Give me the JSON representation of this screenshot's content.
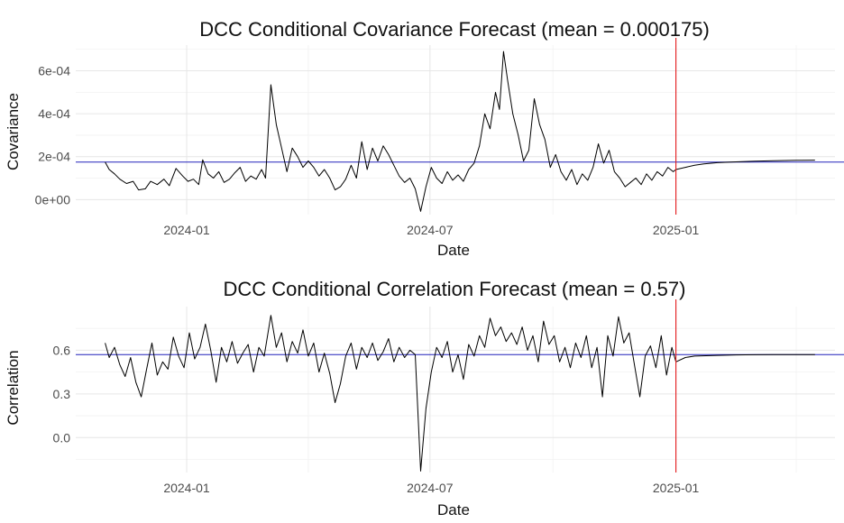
{
  "chart_data": [
    {
      "type": "line",
      "title": "DCC Conditional Covariance Forecast (mean = 0.000175)",
      "xlabel": "Date",
      "ylabel": "Covariance",
      "x_ticks": [
        "2024-01",
        "2024-07",
        "2025-01"
      ],
      "y_ticks": [
        "0e+00",
        "2e-04",
        "4e-04",
        "6e-04"
      ],
      "y_tick_values": [
        0,
        0.0002,
        0.0004,
        0.0006
      ],
      "xlim": [
        "2023-10-10",
        "2025-04-30"
      ],
      "ylim": [
        -7e-05,
        0.00072
      ],
      "grid": true,
      "mean_line": {
        "value": 0.000175,
        "color": "#2222bb"
      },
      "forecast_start": {
        "date": "2025-01-01",
        "color": "#e41a1c"
      },
      "series": [
        {
          "color": "#000000",
          "points": [
            [
              "2023-11-01",
              0.000175
            ],
            [
              "2023-11-04",
              0.00014
            ],
            [
              "2023-11-08",
              0.00012
            ],
            [
              "2023-11-12",
              9.5e-05
            ],
            [
              "2023-11-17",
              7.5e-05
            ],
            [
              "2023-11-22",
              8.5e-05
            ],
            [
              "2023-11-26",
              4.5e-05
            ],
            [
              "2023-12-01",
              5e-05
            ],
            [
              "2023-12-05",
              8.5e-05
            ],
            [
              "2023-12-10",
              7e-05
            ],
            [
              "2023-12-15",
              9.5e-05
            ],
            [
              "2023-12-19",
              6.5e-05
            ],
            [
              "2023-12-24",
              0.000145
            ],
            [
              "2023-12-29",
              0.00011
            ],
            [
              "2024-01-02",
              8.5e-05
            ],
            [
              "2024-01-06",
              9.5e-05
            ],
            [
              "2024-01-10",
              7e-05
            ],
            [
              "2024-01-13",
              0.000185
            ],
            [
              "2024-01-17",
              0.00012
            ],
            [
              "2024-01-21",
              0.0001
            ],
            [
              "2024-01-25",
              0.00013
            ],
            [
              "2024-01-29",
              8e-05
            ],
            [
              "2024-02-02",
              9.5e-05
            ],
            [
              "2024-02-06",
              0.000125
            ],
            [
              "2024-02-10",
              0.00015
            ],
            [
              "2024-02-14",
              8.5e-05
            ],
            [
              "2024-02-18",
              0.00011
            ],
            [
              "2024-02-22",
              9.5e-05
            ],
            [
              "2024-02-26",
              0.00014
            ],
            [
              "2024-02-29",
              0.0001
            ],
            [
              "2024-03-04",
              0.000535
            ],
            [
              "2024-03-08",
              0.00035
            ],
            [
              "2024-03-12",
              0.00024
            ],
            [
              "2024-03-16",
              0.00013
            ],
            [
              "2024-03-20",
              0.00024
            ],
            [
              "2024-03-24",
              0.0002
            ],
            [
              "2024-03-28",
              0.00015
            ],
            [
              "2024-04-01",
              0.00018
            ],
            [
              "2024-04-05",
              0.00015
            ],
            [
              "2024-04-09",
              0.00011
            ],
            [
              "2024-04-13",
              0.00014
            ],
            [
              "2024-04-17",
              0.0001
            ],
            [
              "2024-04-21",
              4.5e-05
            ],
            [
              "2024-04-25",
              6e-05
            ],
            [
              "2024-04-29",
              9.5e-05
            ],
            [
              "2024-05-03",
              0.00016
            ],
            [
              "2024-05-07",
              0.0001
            ],
            [
              "2024-05-11",
              0.00027
            ],
            [
              "2024-05-15",
              0.00014
            ],
            [
              "2024-05-19",
              0.00024
            ],
            [
              "2024-05-23",
              0.00018
            ],
            [
              "2024-05-27",
              0.00025
            ],
            [
              "2024-05-31",
              0.00021
            ],
            [
              "2024-06-04",
              0.00016
            ],
            [
              "2024-06-08",
              0.00011
            ],
            [
              "2024-06-12",
              8e-05
            ],
            [
              "2024-06-16",
              0.0001
            ],
            [
              "2024-06-20",
              5e-05
            ],
            [
              "2024-06-24",
              -5.5e-05
            ],
            [
              "2024-06-28",
              6e-05
            ],
            [
              "2024-07-02",
              0.00015
            ],
            [
              "2024-07-06",
              0.0001
            ],
            [
              "2024-07-10",
              7.5e-05
            ],
            [
              "2024-07-14",
              0.00013
            ],
            [
              "2024-07-18",
              9e-05
            ],
            [
              "2024-07-22",
              0.000115
            ],
            [
              "2024-07-26",
              8.5e-05
            ],
            [
              "2024-07-30",
              0.00014
            ],
            [
              "2024-08-03",
              0.00017
            ],
            [
              "2024-08-07",
              0.00025
            ],
            [
              "2024-08-11",
              0.0004
            ],
            [
              "2024-08-15",
              0.00033
            ],
            [
              "2024-08-19",
              0.0005
            ],
            [
              "2024-08-22",
              0.00042
            ],
            [
              "2024-08-25",
              0.00069
            ],
            [
              "2024-08-28",
              0.00056
            ],
            [
              "2024-09-01",
              0.0004
            ],
            [
              "2024-09-05",
              0.0003
            ],
            [
              "2024-09-09",
              0.00018
            ],
            [
              "2024-09-13",
              0.00023
            ],
            [
              "2024-09-17",
              0.00047
            ],
            [
              "2024-09-21",
              0.00035
            ],
            [
              "2024-09-25",
              0.00028
            ],
            [
              "2024-09-29",
              0.00015
            ],
            [
              "2024-10-03",
              0.00021
            ],
            [
              "2024-10-07",
              0.00013
            ],
            [
              "2024-10-11",
              9e-05
            ],
            [
              "2024-10-15",
              0.00014
            ],
            [
              "2024-10-19",
              7e-05
            ],
            [
              "2024-10-23",
              0.00012
            ],
            [
              "2024-10-27",
              9e-05
            ],
            [
              "2024-10-31",
              0.00015
            ],
            [
              "2024-11-04",
              0.00026
            ],
            [
              "2024-11-08",
              0.00017
            ],
            [
              "2024-11-12",
              0.00023
            ],
            [
              "2024-11-16",
              0.00013
            ],
            [
              "2024-11-20",
              0.0001
            ],
            [
              "2024-11-24",
              6e-05
            ],
            [
              "2024-11-28",
              8e-05
            ],
            [
              "2024-12-02",
              0.0001
            ],
            [
              "2024-12-06",
              7e-05
            ],
            [
              "2024-12-10",
              0.00012
            ],
            [
              "2024-12-14",
              9e-05
            ],
            [
              "2024-12-18",
              0.00013
            ],
            [
              "2024-12-22",
              0.00011
            ],
            [
              "2024-12-26",
              0.00015
            ],
            [
              "2024-12-30",
              0.00013
            ],
            [
              "2025-01-01",
              0.00014
            ],
            [
              "2025-01-08",
              0.00015
            ],
            [
              "2025-01-15",
              0.00016
            ],
            [
              "2025-01-22",
              0.000166
            ],
            [
              "2025-02-01",
              0.000172
            ],
            [
              "2025-02-15",
              0.000176
            ],
            [
              "2025-03-01",
              0.000179
            ],
            [
              "2025-03-15",
              0.000181
            ],
            [
              "2025-04-01",
              0.000183
            ],
            [
              "2025-04-15",
              0.000184
            ]
          ]
        }
      ]
    },
    {
      "type": "line",
      "title": "DCC Conditional Correlation Forecast (mean = 0.57)",
      "xlabel": "Date",
      "ylabel": "Correlation",
      "x_ticks": [
        "2024-01",
        "2024-07",
        "2025-01"
      ],
      "y_ticks": [
        "0.0",
        "0.3",
        "0.6"
      ],
      "y_tick_values": [
        0.0,
        0.3,
        0.6
      ],
      "xlim": [
        "2023-10-10",
        "2025-04-30"
      ],
      "ylim": [
        -0.24,
        0.9
      ],
      "grid": true,
      "mean_line": {
        "value": 0.57,
        "color": "#2222bb"
      },
      "forecast_start": {
        "date": "2025-01-01",
        "color": "#e41a1c"
      },
      "series": [
        {
          "color": "#000000",
          "points": [
            [
              "2023-11-01",
              0.65
            ],
            [
              "2023-11-04",
              0.55
            ],
            [
              "2023-11-08",
              0.62
            ],
            [
              "2023-11-12",
              0.5
            ],
            [
              "2023-11-16",
              0.42
            ],
            [
              "2023-11-20",
              0.55
            ],
            [
              "2023-11-24",
              0.38
            ],
            [
              "2023-11-28",
              0.28
            ],
            [
              "2023-12-02",
              0.47
            ],
            [
              "2023-12-06",
              0.65
            ],
            [
              "2023-12-10",
              0.43
            ],
            [
              "2023-12-14",
              0.52
            ],
            [
              "2023-12-18",
              0.47
            ],
            [
              "2023-12-22",
              0.69
            ],
            [
              "2023-12-26",
              0.56
            ],
            [
              "2023-12-30",
              0.48
            ],
            [
              "2024-01-03",
              0.72
            ],
            [
              "2024-01-07",
              0.54
            ],
            [
              "2024-01-11",
              0.62
            ],
            [
              "2024-01-15",
              0.78
            ],
            [
              "2024-01-19",
              0.6
            ],
            [
              "2024-01-23",
              0.38
            ],
            [
              "2024-01-27",
              0.62
            ],
            [
              "2024-01-31",
              0.52
            ],
            [
              "2024-02-04",
              0.66
            ],
            [
              "2024-02-08",
              0.51
            ],
            [
              "2024-02-12",
              0.58
            ],
            [
              "2024-02-16",
              0.64
            ],
            [
              "2024-02-20",
              0.45
            ],
            [
              "2024-02-24",
              0.62
            ],
            [
              "2024-02-28",
              0.56
            ],
            [
              "2024-03-04",
              0.84
            ],
            [
              "2024-03-08",
              0.62
            ],
            [
              "2024-03-12",
              0.72
            ],
            [
              "2024-03-16",
              0.52
            ],
            [
              "2024-03-20",
              0.66
            ],
            [
              "2024-03-24",
              0.58
            ],
            [
              "2024-03-28",
              0.74
            ],
            [
              "2024-04-01",
              0.56
            ],
            [
              "2024-04-05",
              0.65
            ],
            [
              "2024-04-09",
              0.45
            ],
            [
              "2024-04-13",
              0.58
            ],
            [
              "2024-04-17",
              0.44
            ],
            [
              "2024-04-21",
              0.24
            ],
            [
              "2024-04-25",
              0.37
            ],
            [
              "2024-04-29",
              0.56
            ],
            [
              "2024-05-03",
              0.65
            ],
            [
              "2024-05-07",
              0.47
            ],
            [
              "2024-05-11",
              0.62
            ],
            [
              "2024-05-15",
              0.55
            ],
            [
              "2024-05-19",
              0.65
            ],
            [
              "2024-05-23",
              0.53
            ],
            [
              "2024-05-27",
              0.59
            ],
            [
              "2024-05-31",
              0.68
            ],
            [
              "2024-06-04",
              0.52
            ],
            [
              "2024-06-08",
              0.62
            ],
            [
              "2024-06-12",
              0.55
            ],
            [
              "2024-06-16",
              0.6
            ],
            [
              "2024-06-20",
              0.57
            ],
            [
              "2024-06-24",
              -0.23
            ],
            [
              "2024-06-28",
              0.2
            ],
            [
              "2024-07-02",
              0.45
            ],
            [
              "2024-07-06",
              0.62
            ],
            [
              "2024-07-10",
              0.55
            ],
            [
              "2024-07-14",
              0.66
            ],
            [
              "2024-07-18",
              0.45
            ],
            [
              "2024-07-22",
              0.57
            ],
            [
              "2024-07-26",
              0.4
            ],
            [
              "2024-07-30",
              0.64
            ],
            [
              "2024-08-03",
              0.56
            ],
            [
              "2024-08-07",
              0.7
            ],
            [
              "2024-08-11",
              0.62
            ],
            [
              "2024-08-15",
              0.82
            ],
            [
              "2024-08-19",
              0.7
            ],
            [
              "2024-08-23",
              0.76
            ],
            [
              "2024-08-27",
              0.66
            ],
            [
              "2024-08-31",
              0.72
            ],
            [
              "2024-09-04",
              0.64
            ],
            [
              "2024-09-08",
              0.76
            ],
            [
              "2024-09-12",
              0.6
            ],
            [
              "2024-09-16",
              0.7
            ],
            [
              "2024-09-20",
              0.52
            ],
            [
              "2024-09-24",
              0.8
            ],
            [
              "2024-09-28",
              0.64
            ],
            [
              "2024-10-02",
              0.7
            ],
            [
              "2024-10-06",
              0.52
            ],
            [
              "2024-10-10",
              0.62
            ],
            [
              "2024-10-14",
              0.48
            ],
            [
              "2024-10-18",
              0.65
            ],
            [
              "2024-10-22",
              0.55
            ],
            [
              "2024-10-26",
              0.7
            ],
            [
              "2024-10-30",
              0.48
            ],
            [
              "2024-11-03",
              0.62
            ],
            [
              "2024-11-07",
              0.28
            ],
            [
              "2024-11-11",
              0.7
            ],
            [
              "2024-11-15",
              0.56
            ],
            [
              "2024-11-19",
              0.83
            ],
            [
              "2024-11-23",
              0.65
            ],
            [
              "2024-11-27",
              0.72
            ],
            [
              "2024-12-01",
              0.5
            ],
            [
              "2024-12-05",
              0.28
            ],
            [
              "2024-12-09",
              0.56
            ],
            [
              "2024-12-13",
              0.63
            ],
            [
              "2024-12-17",
              0.48
            ],
            [
              "2024-12-21",
              0.7
            ],
            [
              "2024-12-25",
              0.43
            ],
            [
              "2024-12-29",
              0.62
            ],
            [
              "2025-01-01",
              0.52
            ],
            [
              "2025-01-08",
              0.55
            ],
            [
              "2025-01-15",
              0.56
            ],
            [
              "2025-02-01",
              0.565
            ],
            [
              "2025-02-15",
              0.568
            ],
            [
              "2025-03-01",
              0.569
            ],
            [
              "2025-03-15",
              0.57
            ],
            [
              "2025-04-15",
              0.57
            ]
          ]
        }
      ]
    }
  ]
}
